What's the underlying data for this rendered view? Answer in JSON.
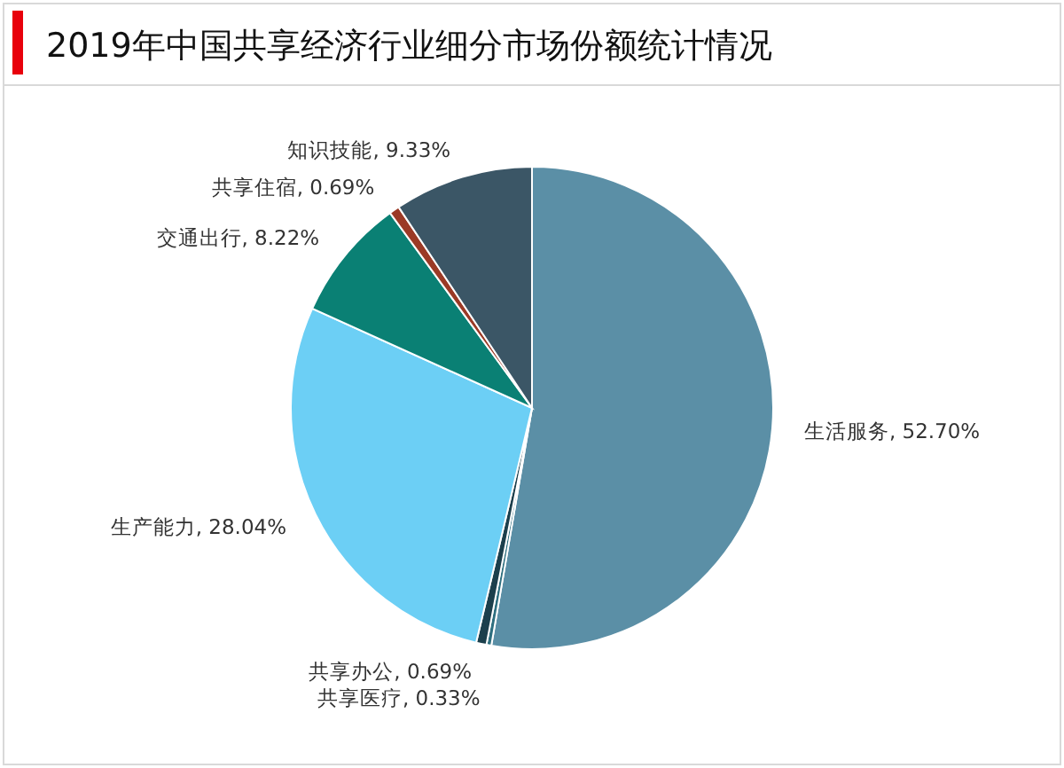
{
  "chart_data": {
    "type": "pie",
    "title": "2019年中国共享经济行业细分市场份额统计情况",
    "categories": [
      "生活服务",
      "共享医疗",
      "共享办公",
      "生产能力",
      "交通出行",
      "共享住宿",
      "知识技能"
    ],
    "values": [
      52.7,
      0.33,
      0.69,
      28.04,
      8.22,
      0.69,
      9.33
    ],
    "colors": [
      "#5b8fa6",
      "#2e6f80",
      "#1c3f4c",
      "#6ccff5",
      "#0a8074",
      "#9b3a26",
      "#3b5666"
    ],
    "value_labels": [
      "52.70%",
      "0.33%",
      "0.69%",
      "28.04%",
      "8.22%",
      "0.69%",
      "9.33%"
    ]
  }
}
